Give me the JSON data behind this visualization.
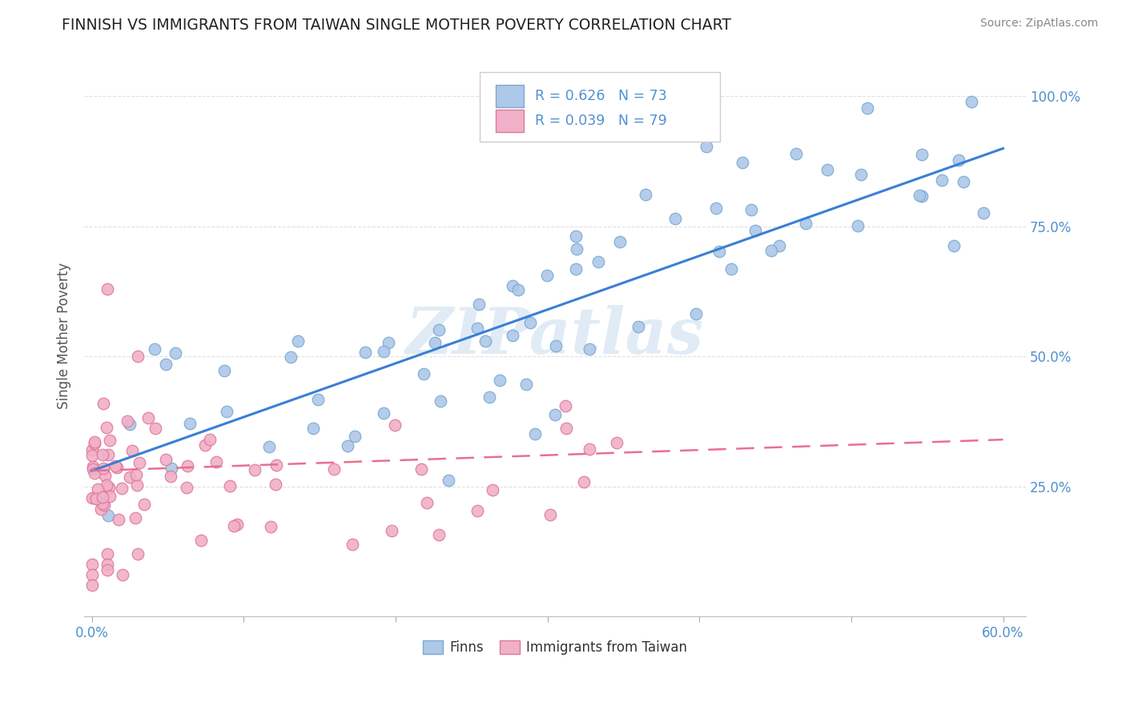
{
  "title": "FINNISH VS IMMIGRANTS FROM TAIWAN SINGLE MOTHER POVERTY CORRELATION CHART",
  "source": "Source: ZipAtlas.com",
  "ylabel": "Single Mother Poverty",
  "finns_color": "#adc8e8",
  "finns_edge_color": "#7aaad0",
  "taiwan_color": "#f0b0c8",
  "taiwan_edge_color": "#e07898",
  "trend_finns_color": "#3a7fd5",
  "trend_taiwan_color": "#e87090",
  "R_finns": 0.626,
  "N_finns": 73,
  "R_taiwan": 0.039,
  "N_taiwan": 79,
  "watermark": "ZIPatlas",
  "legend_finns": "Finns",
  "legend_taiwan": "Immigrants from Taiwan",
  "tick_color": "#5090d0",
  "grid_color": "#e0e0e0"
}
